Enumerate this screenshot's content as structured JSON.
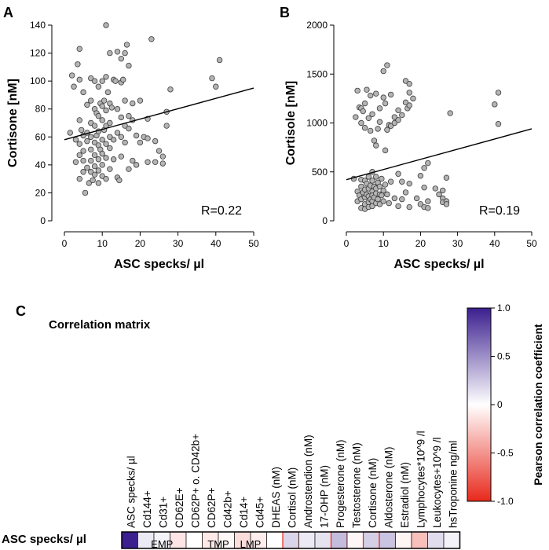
{
  "panels": {
    "a_label": "A",
    "b_label": "B",
    "c_label": "C"
  },
  "colors": {
    "point_fill": "#b4b4b4",
    "point_stroke": "#3c3c3c",
    "axis": "#000000",
    "cmap_pos": "#3b1f8f",
    "cmap_neg": "#e8291c"
  },
  "chart_data": [
    {
      "id": "A",
      "type": "scatter",
      "xlabel": "ASC specks/ µl",
      "ylabel": "Cortisone [nM]",
      "xlim": [
        0,
        50
      ],
      "ylim": [
        0,
        140
      ],
      "xticks": [
        0,
        10,
        20,
        30,
        40,
        50
      ],
      "yticks": [
        0,
        20,
        40,
        60,
        80,
        100,
        120,
        140
      ],
      "annotation": "R=0.22",
      "fit_line": {
        "x": [
          0,
          50
        ],
        "y": [
          58,
          95
        ]
      },
      "points": [
        [
          1.5,
          63
        ],
        [
          2,
          104
        ],
        [
          2.5,
          96
        ],
        [
          3,
          58
        ],
        [
          3,
          42
        ],
        [
          3.5,
          112
        ],
        [
          4,
          123
        ],
        [
          4,
          101
        ],
        [
          4,
          72
        ],
        [
          4,
          55
        ],
        [
          4,
          47
        ],
        [
          4,
          30
        ],
        [
          4.5,
          65
        ],
        [
          5,
          92
        ],
        [
          5,
          61
        ],
        [
          5,
          50
        ],
        [
          5,
          43
        ],
        [
          5,
          35
        ],
        [
          5.5,
          20
        ],
        [
          6,
          83
        ],
        [
          6,
          63
        ],
        [
          6,
          57
        ],
        [
          6,
          38
        ],
        [
          6.5,
          27
        ],
        [
          7,
          102
        ],
        [
          7,
          86
        ],
        [
          7,
          70
        ],
        [
          7,
          60
        ],
        [
          7,
          51
        ],
        [
          7,
          43
        ],
        [
          7,
          35
        ],
        [
          7.5,
          29
        ],
        [
          8,
          100
        ],
        [
          8,
          80
        ],
        [
          8,
          68
        ],
        [
          8,
          56
        ],
        [
          8,
          47
        ],
        [
          8,
          39
        ],
        [
          8,
          33
        ],
        [
          8.5,
          77
        ],
        [
          8.5,
          61
        ],
        [
          9,
          96
        ],
        [
          9,
          75
        ],
        [
          9,
          64
        ],
        [
          9,
          54
        ],
        [
          9,
          44
        ],
        [
          9,
          36
        ],
        [
          9,
          27
        ],
        [
          9.5,
          84
        ],
        [
          9.5,
          51
        ],
        [
          10,
          100
        ],
        [
          10,
          82
        ],
        [
          10,
          72
        ],
        [
          10,
          58
        ],
        [
          10,
          48
        ],
        [
          10,
          40
        ],
        [
          10,
          32
        ],
        [
          10.5,
          86
        ],
        [
          10.5,
          65
        ],
        [
          11,
          140
        ],
        [
          11,
          103
        ],
        [
          11,
          79
        ],
        [
          11,
          68
        ],
        [
          11,
          55
        ],
        [
          11,
          45
        ],
        [
          11,
          30
        ],
        [
          11.5,
          92
        ],
        [
          12,
          120
        ],
        [
          12,
          84
        ],
        [
          12,
          70
        ],
        [
          12,
          60
        ],
        [
          12,
          52
        ],
        [
          12,
          37
        ],
        [
          12.5,
          81
        ],
        [
          13,
          101
        ],
        [
          13,
          58
        ],
        [
          13,
          44
        ],
        [
          13.5,
          100
        ],
        [
          14,
          121
        ],
        [
          14,
          80
        ],
        [
          14,
          63
        ],
        [
          14,
          31
        ],
        [
          14.5,
          29
        ],
        [
          15,
          116
        ],
        [
          15,
          99
        ],
        [
          15,
          74
        ],
        [
          15,
          60
        ],
        [
          15,
          46
        ],
        [
          15.5,
          101
        ],
        [
          16,
          120
        ],
        [
          16,
          86
        ],
        [
          16,
          68
        ],
        [
          16,
          56
        ],
        [
          16.5,
          126
        ],
        [
          17,
          111
        ],
        [
          17,
          75
        ],
        [
          17,
          66
        ],
        [
          17,
          37
        ],
        [
          18,
          84
        ],
        [
          18,
          72
        ],
        [
          18,
          43
        ],
        [
          19,
          61
        ],
        [
          19,
          40
        ],
        [
          20,
          86
        ],
        [
          20,
          56
        ],
        [
          21,
          60
        ],
        [
          22,
          73
        ],
        [
          22,
          59
        ],
        [
          22,
          42
        ],
        [
          23,
          130
        ],
        [
          24,
          57
        ],
        [
          24,
          42
        ],
        [
          25,
          50
        ],
        [
          26,
          46
        ],
        [
          26,
          41
        ],
        [
          27,
          78
        ],
        [
          27,
          68
        ],
        [
          28,
          94
        ],
        [
          39,
          102
        ],
        [
          40,
          96
        ],
        [
          41,
          115
        ]
      ]
    },
    {
      "id": "B",
      "type": "scatter",
      "xlabel": "ASC specks/ µl",
      "ylabel": "Cortisole [nM]",
      "xlim": [
        0,
        50
      ],
      "ylim": [
        0,
        2000
      ],
      "xticks": [
        0,
        10,
        20,
        30,
        40,
        50
      ],
      "yticks": [
        0,
        500,
        1000,
        1500,
        2000
      ],
      "annotation": "R=0.19",
      "fit_line": {
        "x": [
          0,
          50
        ],
        "y": [
          420,
          940
        ]
      },
      "points": [
        [
          2,
          430
        ],
        [
          2.5,
          1060
        ],
        [
          3,
          1330
        ],
        [
          3,
          300
        ],
        [
          3,
          200
        ],
        [
          3.5,
          1160
        ],
        [
          3.5,
          260
        ],
        [
          4,
          1150
        ],
        [
          4,
          1000
        ],
        [
          4,
          420
        ],
        [
          4,
          350
        ],
        [
          4,
          220
        ],
        [
          4,
          130
        ],
        [
          4.5,
          1120
        ],
        [
          4.5,
          290
        ],
        [
          5,
          1200
        ],
        [
          5,
          950
        ],
        [
          5,
          410
        ],
        [
          5,
          320
        ],
        [
          5,
          240
        ],
        [
          5,
          170
        ],
        [
          5,
          120
        ],
        [
          5.5,
          1340
        ],
        [
          5.5,
          380
        ],
        [
          5.5,
          270
        ],
        [
          6,
          1050
        ],
        [
          6,
          450
        ],
        [
          6,
          330
        ],
        [
          6,
          250
        ],
        [
          6,
          190
        ],
        [
          6,
          140
        ],
        [
          6.5,
          1280
        ],
        [
          6.5,
          920
        ],
        [
          6.5,
          360
        ],
        [
          6.5,
          220
        ],
        [
          7,
          1090
        ],
        [
          7,
          500
        ],
        [
          7,
          410
        ],
        [
          7,
          300
        ],
        [
          7,
          260
        ],
        [
          7,
          200
        ],
        [
          7,
          150
        ],
        [
          7.5,
          820
        ],
        [
          7.5,
          350
        ],
        [
          7.5,
          240
        ],
        [
          8,
          1300
        ],
        [
          8,
          770
        ],
        [
          8,
          450
        ],
        [
          8,
          330
        ],
        [
          8,
          280
        ],
        [
          8,
          180
        ],
        [
          8.5,
          940
        ],
        [
          8.5,
          390
        ],
        [
          8.5,
          220
        ],
        [
          9,
          1150
        ],
        [
          9,
          1010
        ],
        [
          9,
          350
        ],
        [
          9,
          270
        ],
        [
          9,
          170
        ],
        [
          9.5,
          430
        ],
        [
          9.5,
          260
        ],
        [
          10,
          1530
        ],
        [
          10,
          1260
        ],
        [
          10,
          310
        ],
        [
          10,
          200
        ],
        [
          10.5,
          1200
        ],
        [
          10.5,
          720
        ],
        [
          10.5,
          370
        ],
        [
          11,
          1590
        ],
        [
          11,
          930
        ],
        [
          11,
          270
        ],
        [
          11.5,
          980
        ],
        [
          11.5,
          180
        ],
        [
          12,
          1290
        ],
        [
          12,
          970
        ],
        [
          12,
          400
        ],
        [
          13,
          1060
        ],
        [
          13,
          1000
        ],
        [
          13,
          230
        ],
        [
          14,
          1130
        ],
        [
          14,
          1030
        ],
        [
          14,
          480
        ],
        [
          14,
          150
        ],
        [
          15,
          1080
        ],
        [
          15,
          400
        ],
        [
          15,
          220
        ],
        [
          16,
          1430
        ],
        [
          16,
          1210
        ],
        [
          16,
          290
        ],
        [
          16.5,
          1150
        ],
        [
          17,
          1400
        ],
        [
          17,
          1310
        ],
        [
          17,
          1180
        ],
        [
          17,
          380
        ],
        [
          17,
          140
        ],
        [
          18,
          1250
        ],
        [
          19,
          230
        ],
        [
          20,
          460
        ],
        [
          20,
          170
        ],
        [
          21,
          540
        ],
        [
          21,
          340
        ],
        [
          21,
          140
        ],
        [
          22,
          590
        ],
        [
          22,
          200
        ],
        [
          22,
          130
        ],
        [
          24,
          330
        ],
        [
          25,
          270
        ],
        [
          26,
          310
        ],
        [
          26,
          230
        ],
        [
          26,
          190
        ],
        [
          27,
          440
        ],
        [
          27,
          200
        ],
        [
          27,
          170
        ],
        [
          28,
          1100
        ],
        [
          40,
          1190
        ],
        [
          41,
          1310
        ],
        [
          41,
          990
        ]
      ]
    },
    {
      "id": "C",
      "type": "heatmap",
      "title": "Correlation matrix",
      "row_label": "ASC specks/ µl",
      "columns": [
        "ASC specks/ µl",
        "Cd144+",
        "Cd31+",
        "CD62E+",
        "CD62P+ o. CD42b+",
        "CD62P+",
        "Cd42b+",
        "Cd14+",
        "Cd45+",
        "DHEAS (nM)",
        "Cortisol (nM)",
        "Androstendion (nM)",
        "17-OHP (nM)",
        "Progesterone (nM)",
        "Testosterone (nM)",
        "Cortisone (nM)",
        "Aldosterone (nM)",
        "Estradiol (nM)",
        "Lymphocytes*10^9 /l",
        "Leukocytes+10^9 /l",
        "hsTroponine ng/ml"
      ],
      "values": [
        1.0,
        0.1,
        0.05,
        -0.12,
        0.0,
        -0.1,
        -0.03,
        -0.16,
        -0.08,
        0.0,
        0.19,
        0.1,
        0.13,
        0.3,
        -0.04,
        0.22,
        0.27,
        -0.05,
        -0.3,
        0.16,
        0.06
      ],
      "highlight_columns": [
        10,
        13,
        15,
        16
      ],
      "groups": [
        {
          "label": "EMP",
          "from": 1,
          "to": 3
        },
        {
          "label": "TMP",
          "from": 5,
          "to": 6
        },
        {
          "label": "LMP",
          "from": 7,
          "to": 8
        }
      ],
      "colorbar": {
        "label": "Pearson correlation coefficient",
        "ticks": [
          1.0,
          0.5,
          0,
          -0.5,
          -1.0
        ],
        "tick_labels": [
          "1.0",
          "0.5",
          "0",
          "-0.5",
          "-1.0"
        ],
        "vmin": -1.0,
        "vmax": 1.0
      }
    }
  ]
}
